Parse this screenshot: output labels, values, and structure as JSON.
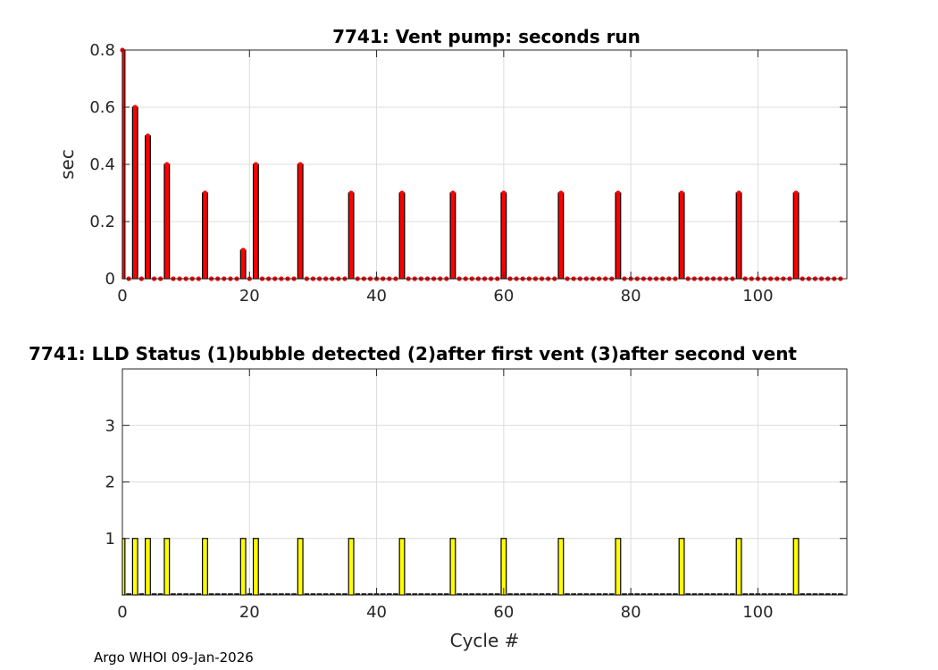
{
  "chart_data": [
    {
      "type": "bar",
      "title": "7741: Vent pump: seconds run",
      "xlabel": "",
      "ylabel": "sec",
      "xlim": [
        0,
        114
      ],
      "ylim": [
        0,
        0.8
      ],
      "xticks": [
        0,
        20,
        40,
        60,
        80,
        100
      ],
      "yticks": [
        0,
        0.2,
        0.4,
        0.6,
        0.8
      ],
      "grid": true,
      "bar_color": "#ff0000",
      "marker_color": "#ff0000",
      "cycles_max": 113,
      "x": [
        0,
        2,
        4,
        7,
        13,
        19,
        21,
        28,
        36,
        44,
        52,
        60,
        69,
        78,
        88,
        97,
        106
      ],
      "values": [
        0.8,
        0.6,
        0.5,
        0.4,
        0.3,
        0.1,
        0.4,
        0.4,
        0.3,
        0.3,
        0.3,
        0.3,
        0.3,
        0.3,
        0.3,
        0.3,
        0.3
      ]
    },
    {
      "type": "bar",
      "title": "7741: LLD Status   (1)bubble detected   (2)after first vent  (3)after second vent",
      "xlabel": "Cycle #",
      "ylabel": "",
      "xlim": [
        0,
        114
      ],
      "ylim": [
        0,
        4
      ],
      "xticks": [
        0,
        20,
        40,
        60,
        80,
        100
      ],
      "yticks": [
        1,
        2,
        3
      ],
      "grid": true,
      "bar_color": "#ffff00",
      "cycles_max": 113,
      "x": [
        0,
        2,
        4,
        7,
        13,
        19,
        21,
        28,
        36,
        44,
        52,
        60,
        69,
        78,
        88,
        97,
        106
      ],
      "values": [
        1,
        1,
        1,
        1,
        1,
        1,
        1,
        1,
        1,
        1,
        1,
        1,
        1,
        1,
        1,
        1,
        1
      ]
    }
  ],
  "footer": "Argo WHOI 09-Jan-2026"
}
